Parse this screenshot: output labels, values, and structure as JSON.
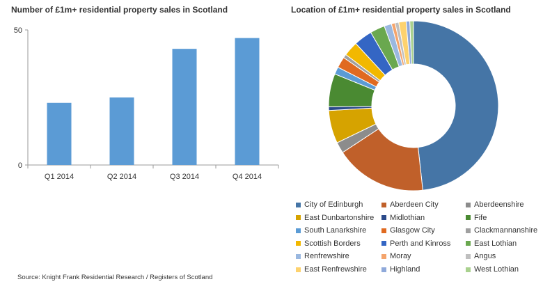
{
  "chart_data": [
    {
      "type": "bar",
      "title": "Number of £1m+ residential property sales in Scotland",
      "categories": [
        "Q1 2014",
        "Q2 2014",
        "Q3 2014",
        "Q4 2014"
      ],
      "values": [
        23,
        25,
        43,
        47
      ],
      "ylim": [
        0,
        50
      ],
      "yticks": [
        "0",
        "50"
      ],
      "xlabel": "",
      "ylabel": "",
      "color": "#5b9bd5",
      "grid": false
    },
    {
      "type": "pie",
      "donut": true,
      "title": "Location of £1m+ residential property sales in Scotland",
      "labels": [
        "City of Edinburgh",
        "Aberdeen City",
        "Aberdeenshire",
        "East Dunbartonshire",
        "Midlothian",
        "Fife",
        "South Lanarkshire",
        "Glasgow City",
        "Clackmannanshire",
        "Scottish Borders",
        "Perth and Kinross",
        "East Lothian",
        "Renfrewshire",
        "Moray",
        "Angus",
        "East Renfrewshire",
        "Highland",
        "West Lothian"
      ],
      "values": [
        69,
        25,
        3,
        9,
        1,
        9,
        2,
        3,
        1,
        4,
        5,
        4,
        2,
        1,
        1,
        2,
        1,
        1
      ],
      "colors": [
        "#4575a6",
        "#c0602a",
        "#8c8c8c",
        "#d6a300",
        "#2b4a8a",
        "#4a8a32",
        "#5b9bd5",
        "#e06a20",
        "#a0a0a0",
        "#f2b800",
        "#3466c4",
        "#6aa84f",
        "#9ab8e0",
        "#f4a46c",
        "#bfbfbf",
        "#fdd26e",
        "#8fa9da",
        "#a9d18e"
      ],
      "legend_position": "bottom"
    }
  ],
  "source": "Source: Knight Frank Residential Research / Registers of Scotland"
}
